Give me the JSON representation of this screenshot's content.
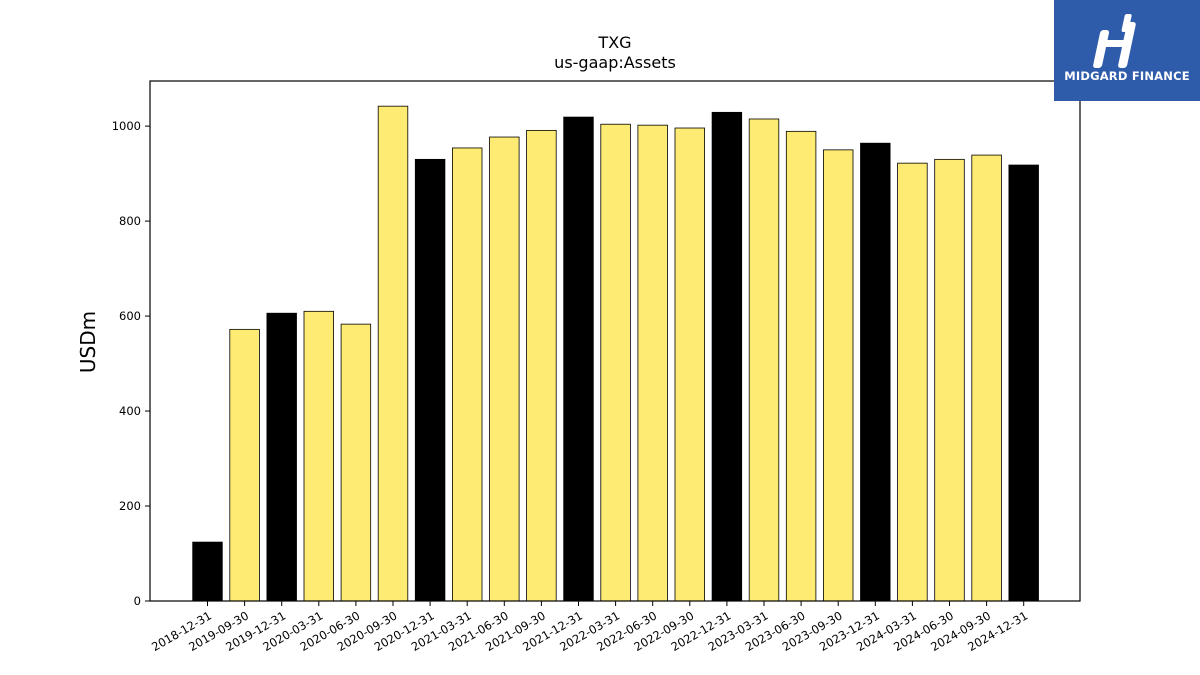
{
  "brand": {
    "name": "MIDGARD FINANCE",
    "bg_color": "#2f5bab"
  },
  "chart_data": {
    "type": "bar",
    "title": "TXG",
    "subtitle": "us-gaap:Assets",
    "xlabel": "",
    "ylabel": "USDm",
    "ylim": [
      0,
      1095
    ],
    "yticks": [
      0,
      200,
      400,
      600,
      800,
      1000
    ],
    "grid": false,
    "categories": [
      "2018-12-31",
      "2019-09-30",
      "2019-12-31",
      "2020-03-31",
      "2020-06-30",
      "2020-09-30",
      "2020-12-31",
      "2021-03-31",
      "2021-06-30",
      "2021-09-30",
      "2021-12-31",
      "2022-03-31",
      "2022-06-30",
      "2022-09-30",
      "2022-12-31",
      "2023-03-31",
      "2023-06-30",
      "2023-09-30",
      "2023-12-31",
      "2024-03-31",
      "2024-06-30",
      "2024-09-30",
      "2024-12-31"
    ],
    "values": [
      124,
      572,
      606,
      610,
      583,
      1042,
      930,
      954,
      977,
      991,
      1019,
      1004,
      1002,
      996,
      1029,
      1015,
      989,
      950,
      964,
      922,
      930,
      939,
      918
    ],
    "colors": [
      "#000000",
      "#feeb74",
      "#000000",
      "#feeb74",
      "#feeb74",
      "#feeb74",
      "#000000",
      "#feeb74",
      "#feeb74",
      "#feeb74",
      "#000000",
      "#feeb74",
      "#feeb74",
      "#feeb74",
      "#000000",
      "#feeb74",
      "#feeb74",
      "#feeb74",
      "#000000",
      "#feeb74",
      "#feeb74",
      "#feeb74",
      "#000000"
    ]
  }
}
